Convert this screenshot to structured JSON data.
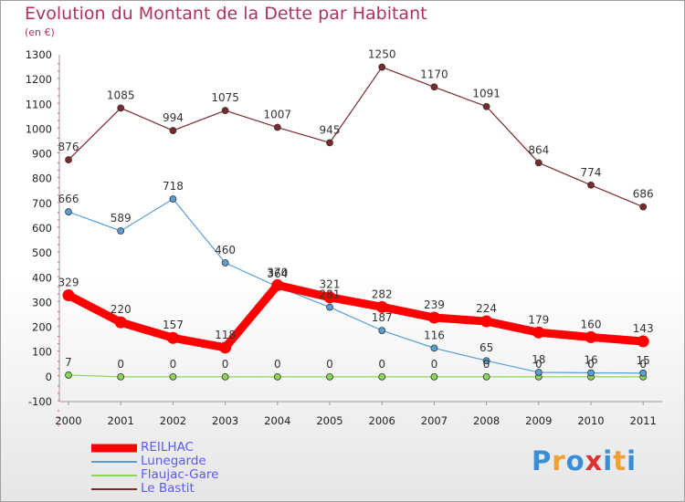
{
  "header": {
    "title": "Evolution du Montant de la Dette par Habitant",
    "subtitle": "(en €)"
  },
  "logo": {
    "text": "Proxiti",
    "colors": [
      "#3a8ed8",
      "#f0a030",
      "#3a8ed8",
      "#e03030",
      "#3a8ed8",
      "#f0a030",
      "#3a8ed8"
    ]
  },
  "chart_data": {
    "type": "line",
    "x": [
      "2000",
      "2001",
      "2002",
      "2003",
      "2004",
      "2005",
      "2006",
      "2007",
      "2008",
      "2009",
      "2010",
      "2011"
    ],
    "ylim": [
      -100,
      1300
    ],
    "yticks": [
      "-100",
      "0",
      "100",
      "200",
      "300",
      "400",
      "500",
      "600",
      "700",
      "800",
      "900",
      "1000",
      "1100",
      "1200",
      "1300"
    ],
    "grid": false,
    "legend_position": "bottom-left",
    "series": [
      {
        "name": "REILHAC",
        "color": "#ff0000",
        "emphasis": true,
        "values": [
          329,
          220,
          157,
          118,
          370,
          321,
          282,
          239,
          224,
          179,
          160,
          143
        ],
        "labels": [
          "329",
          "220",
          "157",
          "118",
          "370",
          "321",
          "282",
          "239",
          "224",
          "179",
          "160",
          "143"
        ]
      },
      {
        "name": "Lunegarde",
        "color": "#5a9fd4",
        "emphasis": false,
        "values": [
          666,
          589,
          718,
          460,
          364,
          281,
          187,
          116,
          65,
          18,
          16,
          15
        ],
        "labels": [
          "666",
          "589",
          "718",
          "460",
          "364",
          "281",
          "187",
          "116",
          "65",
          "18",
          "16",
          "15"
        ]
      },
      {
        "name": "Flaujac-Gare",
        "color": "#8fd45a",
        "emphasis": false,
        "values": [
          7,
          0,
          0,
          0,
          0,
          0,
          0,
          0,
          0,
          0,
          0,
          0
        ],
        "labels": [
          "7",
          "0",
          "0",
          "0",
          "0",
          "0",
          "0",
          "0",
          "0",
          "0",
          "0",
          "0"
        ]
      },
      {
        "name": "Le Bastit",
        "color": "#7a2a2a",
        "emphasis": false,
        "values": [
          876,
          1085,
          994,
          1075,
          1007,
          945,
          1250,
          1170,
          1091,
          864,
          774,
          686
        ],
        "labels": [
          "876",
          "1085",
          "994",
          "1075",
          "1007",
          "945",
          "1250",
          "1170",
          "1091",
          "864",
          "774",
          "686"
        ]
      }
    ]
  }
}
